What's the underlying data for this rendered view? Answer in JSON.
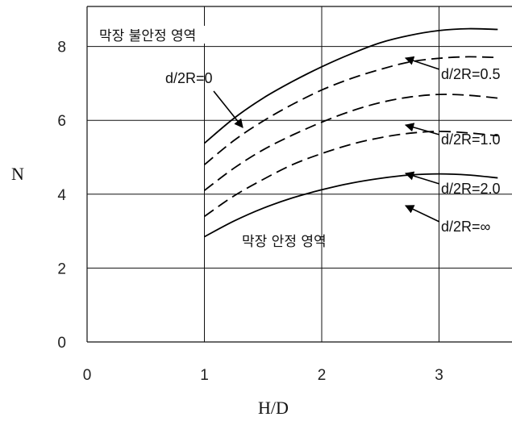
{
  "chart_data": {
    "type": "line",
    "xlabel": "H/D",
    "ylabel": "N",
    "xlim": [
      0,
      3.6
    ],
    "ylim": [
      0,
      8.7
    ],
    "xticks": [
      "0",
      "1",
      "2",
      "3"
    ],
    "yticks": [
      "0",
      "2",
      "4",
      "6",
      "8"
    ],
    "grid": true,
    "annotations": {
      "unstable_region": "막장 불안정 영역",
      "stable_region": "막장 안정 영역"
    },
    "series": [
      {
        "name": "d/2R=0",
        "style": "solid",
        "x": [
          1.0,
          1.25,
          1.5,
          1.75,
          2.0,
          2.25,
          2.5,
          2.75,
          3.0,
          3.25,
          3.5
        ],
        "y": [
          5.38,
          6.05,
          6.6,
          7.05,
          7.45,
          7.8,
          8.1,
          8.3,
          8.43,
          8.48,
          8.46
        ]
      },
      {
        "name": "d/2R=0.5",
        "style": "dashed",
        "x": [
          1.0,
          1.25,
          1.5,
          1.75,
          2.0,
          2.25,
          2.5,
          2.75,
          3.0,
          3.25,
          3.5
        ],
        "y": [
          4.8,
          5.45,
          5.98,
          6.43,
          6.82,
          7.13,
          7.38,
          7.58,
          7.68,
          7.72,
          7.7
        ]
      },
      {
        "name": "d/2R=1.0",
        "style": "dashed",
        "x": [
          1.0,
          1.25,
          1.5,
          1.75,
          2.0,
          2.25,
          2.5,
          2.75,
          3.0,
          3.25,
          3.5
        ],
        "y": [
          4.1,
          4.7,
          5.2,
          5.6,
          5.95,
          6.25,
          6.48,
          6.63,
          6.7,
          6.68,
          6.6
        ]
      },
      {
        "name": "d/2R=2.0",
        "style": "dashed",
        "x": [
          1.0,
          1.25,
          1.5,
          1.75,
          2.0,
          2.25,
          2.5,
          2.75,
          3.0,
          3.25,
          3.5
        ],
        "y": [
          3.4,
          3.95,
          4.4,
          4.8,
          5.1,
          5.35,
          5.53,
          5.65,
          5.7,
          5.66,
          5.58
        ]
      },
      {
        "name": "d/2R=∞",
        "style": "solid",
        "x": [
          1.0,
          1.25,
          1.5,
          1.75,
          2.0,
          2.25,
          2.5,
          2.75,
          3.0,
          3.25,
          3.5
        ],
        "y": [
          2.85,
          3.27,
          3.62,
          3.9,
          4.12,
          4.3,
          4.43,
          4.52,
          4.55,
          4.52,
          4.44
        ]
      }
    ]
  }
}
